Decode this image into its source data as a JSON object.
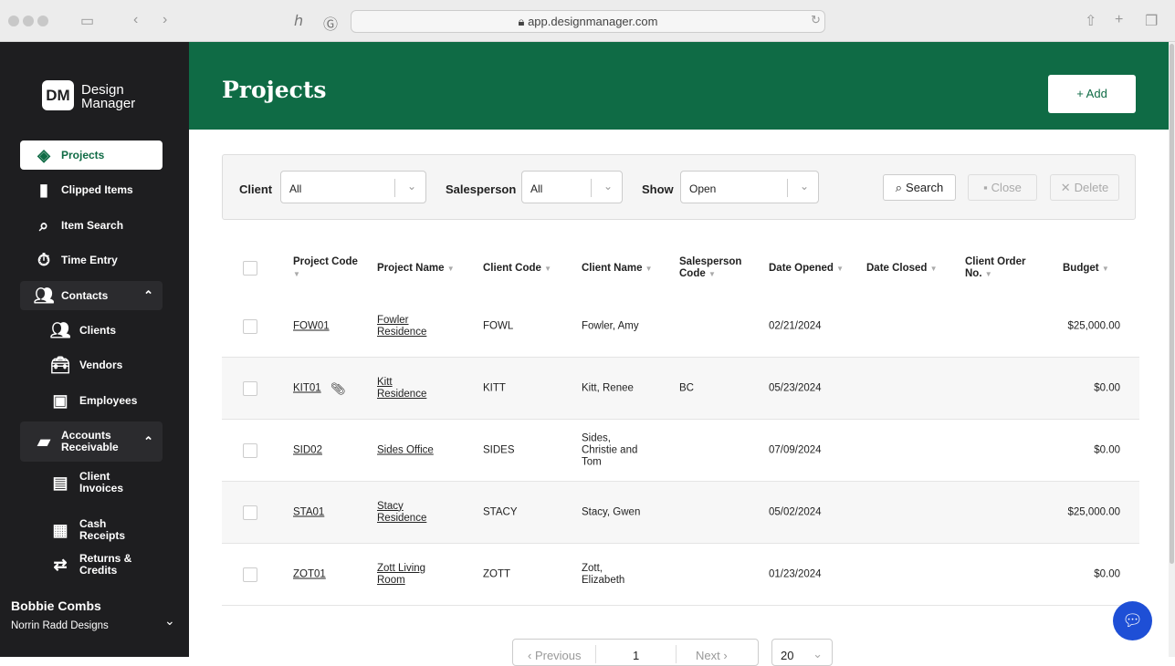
{
  "browser": {
    "url": "app.designmanager.com"
  },
  "brand": {
    "line1": "Design",
    "line2": "Manager",
    "colors": {
      "primary": "#0f6b45",
      "sidebar": "#1e1e20"
    }
  },
  "sidebar": {
    "items": [
      {
        "label": "Projects",
        "icon": "layers-icon",
        "active": true
      },
      {
        "label": "Clipped Items",
        "icon": "clipboard-icon"
      },
      {
        "label": "Item Search",
        "icon": "search-icon"
      },
      {
        "label": "Time Entry",
        "icon": "stopwatch-icon"
      },
      {
        "label": "Contacts",
        "icon": "people-icon",
        "group": true
      },
      {
        "label": "Clients",
        "icon": "users-icon",
        "sub": true
      },
      {
        "label": "Vendors",
        "icon": "toolbox-icon",
        "sub": true
      },
      {
        "label": "Employees",
        "icon": "id-card-icon",
        "sub": true
      },
      {
        "label": "Accounts Receivable",
        "icon": "folder-plus-icon",
        "group": true
      },
      {
        "label": "Client Invoices",
        "icon": "invoice-icon",
        "sub": true
      },
      {
        "label": "Cash Receipts",
        "icon": "receipt-icon",
        "sub": true
      },
      {
        "label": "Returns & Credits",
        "icon": "return-icon",
        "sub": true
      }
    ],
    "user": {
      "name": "Bobbie Combs",
      "company": "Norrin Radd Designs"
    }
  },
  "header": {
    "title": "Projects",
    "add_label": "+ Add"
  },
  "filters": {
    "client_label": "Client",
    "client_value": "All",
    "salesperson_label": "Salesperson",
    "salesperson_value": "All",
    "show_label": "Show",
    "show_value": "Open",
    "search_label": "Search",
    "close_label": "Close",
    "delete_label": "Delete"
  },
  "table": {
    "columns": [
      "Project Code",
      "Project Name",
      "Client Code",
      "Client Name",
      "Salesperson Code",
      "Date Opened",
      "Date Closed",
      "Client Order No.",
      "Budget"
    ],
    "rows": [
      {
        "code": "FOW01",
        "name": "Fowler Residence",
        "client_code": "FOWL",
        "client_name": "Fowler, Amy",
        "salesperson": "",
        "opened": "02/21/2024",
        "closed": "",
        "order_no": "",
        "budget": "$25,000.00"
      },
      {
        "code": "KIT01",
        "attachment": true,
        "name": "Kitt Residence",
        "client_code": "KITT",
        "client_name": "Kitt, Renee",
        "salesperson": "BC",
        "opened": "05/23/2024",
        "closed": "",
        "order_no": "",
        "budget": "$0.00"
      },
      {
        "code": "SID02",
        "name": "Sides Office",
        "client_code": "SIDES",
        "client_name": "Sides, Christie and Tom",
        "salesperson": "",
        "opened": "07/09/2024",
        "closed": "",
        "order_no": "",
        "budget": "$0.00"
      },
      {
        "code": "STA01",
        "name": "Stacy Residence",
        "client_code": "STACY",
        "client_name": "Stacy, Gwen",
        "salesperson": "",
        "opened": "05/02/2024",
        "closed": "",
        "order_no": "",
        "budget": "$25,000.00"
      },
      {
        "code": "ZOT01",
        "name": "Zott Living Room",
        "client_code": "ZOTT",
        "client_name": "Zott, Elizabeth",
        "salesperson": "",
        "opened": "01/23/2024",
        "closed": "",
        "order_no": "",
        "budget": "$0.00"
      }
    ]
  },
  "pagination": {
    "previous": "‹ Previous",
    "page": "1",
    "next": "Next ›",
    "page_size": "20"
  }
}
